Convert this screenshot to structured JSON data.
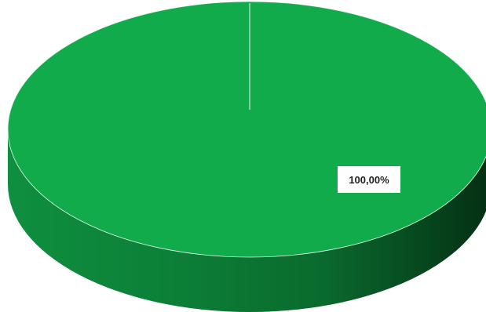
{
  "chart_data": {
    "type": "pie",
    "style": "3d",
    "categories": [
      ""
    ],
    "values": [
      100
    ],
    "data_labels": [
      "100,00%"
    ],
    "colors": [
      "#12AB4C"
    ],
    "title": "",
    "legend": "none"
  }
}
